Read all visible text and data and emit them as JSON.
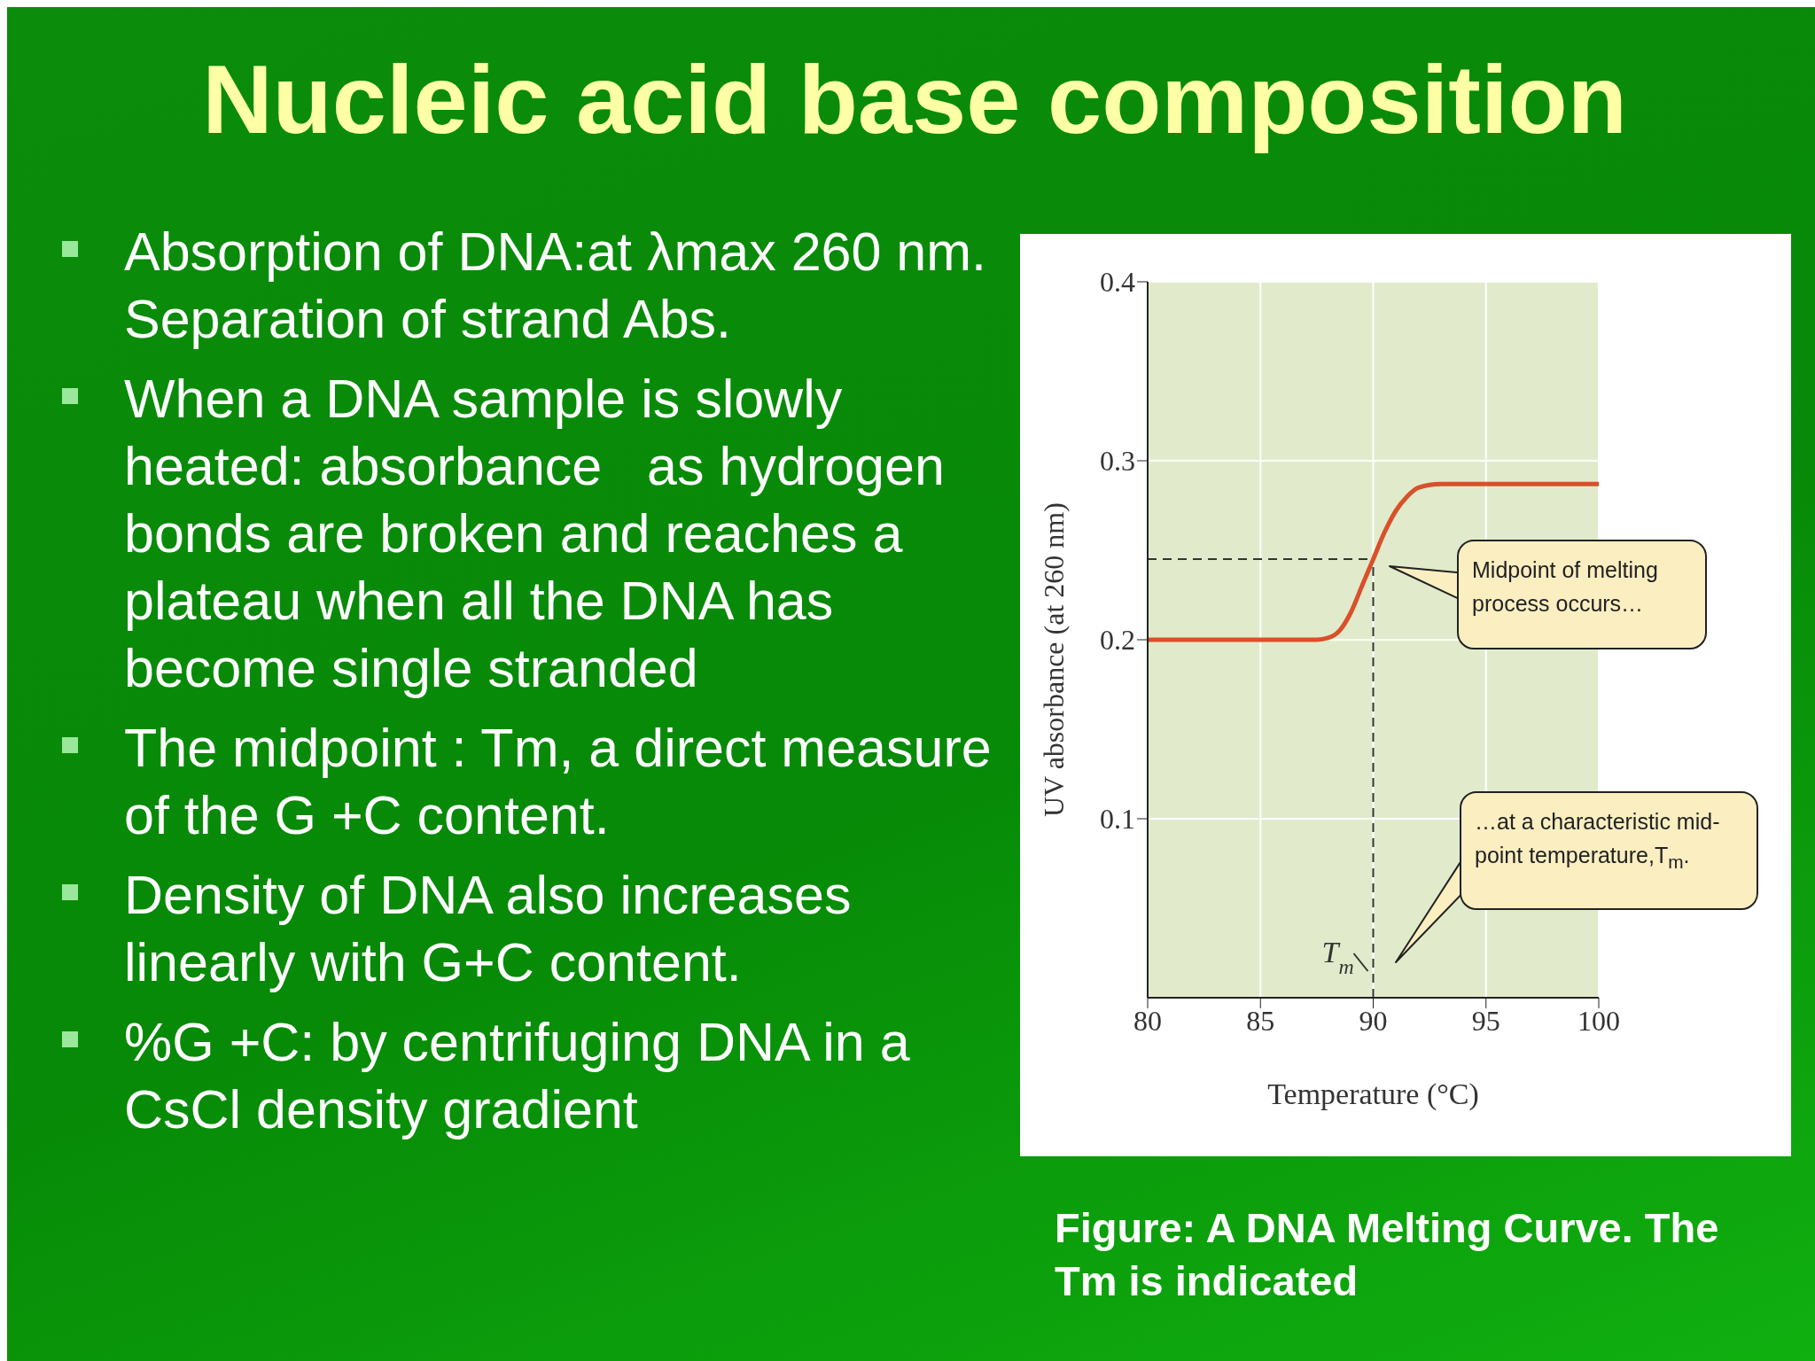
{
  "chart_data": {
    "type": "line",
    "title": "Nucleic acid base composition",
    "xlabel": "Temperature (°C)",
    "ylabel": "UV absorbance (at 260 nm)",
    "x": [
      80,
      87.5,
      88,
      88.5,
      89,
      89.5,
      90,
      90.5,
      91,
      91.5,
      92,
      93,
      100
    ],
    "series": [
      {
        "color": "#d9502a",
        "values": [
          0.2,
          0.2,
          0.201,
          0.205,
          0.215,
          0.23,
          0.245,
          0.26,
          0.272,
          0.28,
          0.285,
          0.287,
          0.287
        ]
      }
    ],
    "xlim": [
      80,
      100
    ],
    "xticks": [
      80,
      85,
      90,
      95,
      100
    ],
    "ylim": [
      0,
      0.4
    ],
    "yticks": [
      0.1,
      0.2,
      0.3,
      0.4
    ],
    "grid": true,
    "marker": "none",
    "line_style": "solid",
    "ref_lines": [
      {
        "axis": "y",
        "value": 0.245,
        "line_style": "dashed",
        "color": "#333333"
      },
      {
        "axis": "x",
        "value": 90,
        "label": "T$_{m}$",
        "line_style": "dashed",
        "color": "#333333"
      }
    ],
    "annotations": [
      "Midpoint of melting process occurs…",
      "…at a characteristic mid-point temperature,T$_{m}$.",
      "Absorption of DNA:at λmax 260 nm. Separation of strand Abs.",
      "When a DNA sample is slowly heated: absorbance   as hydrogen bonds are broken and reaches a plateau when all the DNA has become single stranded",
      "The midpoint : Tm, a direct measure of the G +C content.",
      "Density of DNA also increases linearly with G+C content.",
      "%G +C: by centrifuging DNA in a CsCl density gradient",
      "Figure: A DNA Melting Curve. The Tm is indicated"
    ]
  }
}
